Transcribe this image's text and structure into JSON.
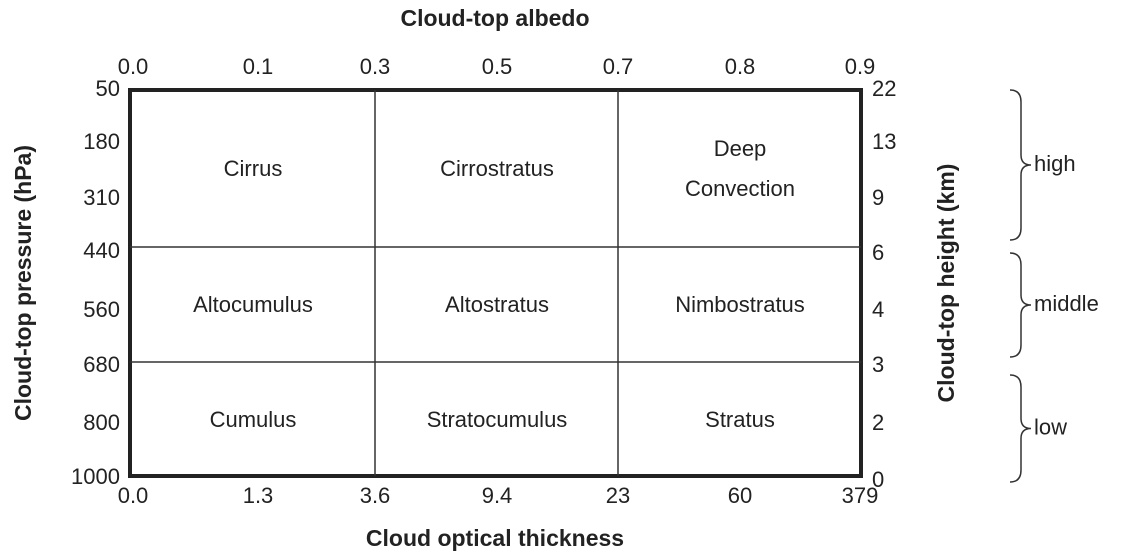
{
  "top_axis": {
    "title": "Cloud-top albedo",
    "ticks": [
      "0.0",
      "0.1",
      "0.3",
      "0.5",
      "0.7",
      "0.8",
      "0.9"
    ]
  },
  "bottom_axis": {
    "title": "Cloud optical thickness",
    "ticks": [
      "0.0",
      "1.3",
      "3.6",
      "9.4",
      "23",
      "60",
      "379"
    ]
  },
  "left_axis": {
    "title": "Cloud-top pressure (hPa)",
    "ticks": [
      "50",
      "180",
      "310",
      "440",
      "560",
      "680",
      "800",
      "1000"
    ]
  },
  "right_axis": {
    "title": "Cloud-top height (km)",
    "ticks": [
      "22",
      "13",
      "9",
      "6",
      "4",
      "3",
      "2",
      "0"
    ]
  },
  "cells": [
    [
      [
        "Cirrus"
      ],
      [
        "Cirrostratus"
      ],
      [
        "Deep",
        "Convection"
      ]
    ],
    [
      [
        "Altocumulus"
      ],
      [
        "Altostratus"
      ],
      [
        "Nimbostratus"
      ]
    ],
    [
      [
        "Cumulus"
      ],
      [
        "Stratocumulus"
      ],
      [
        "Stratus"
      ]
    ]
  ],
  "groups": [
    "high",
    "middle",
    "low"
  ]
}
